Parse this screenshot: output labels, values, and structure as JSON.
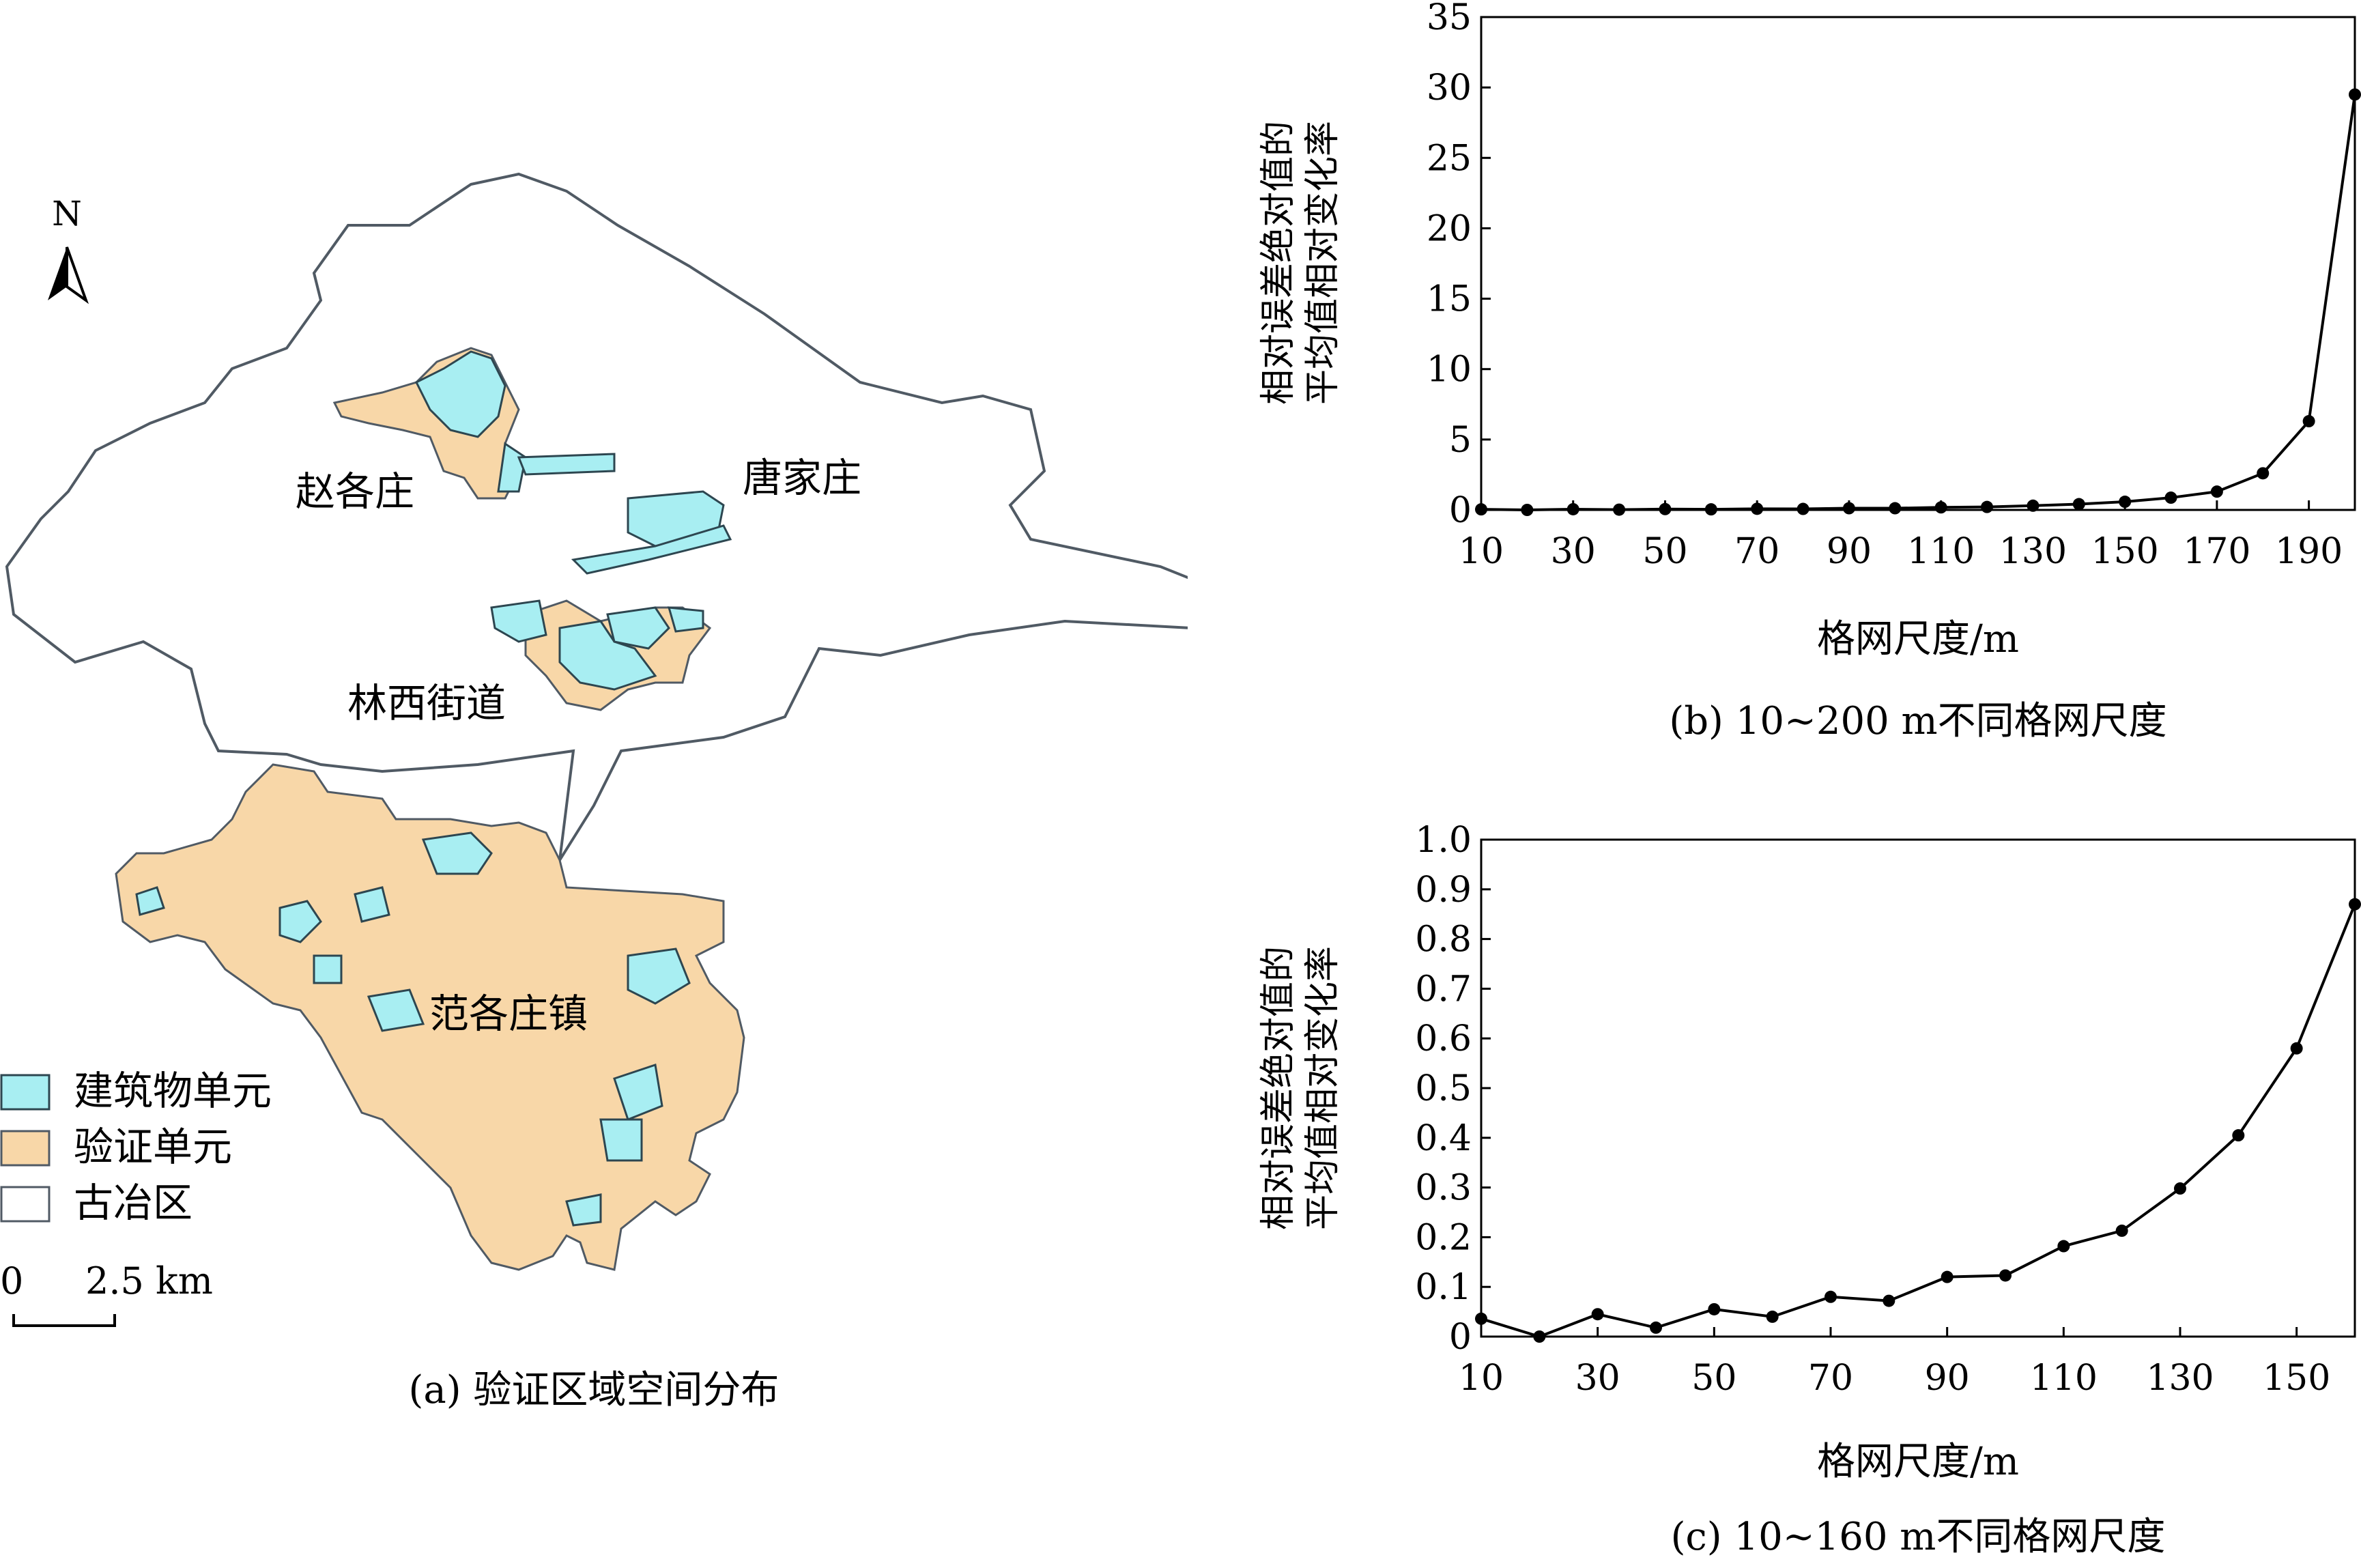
{
  "map": {
    "north_label": "N",
    "regions": [
      "赵各庄",
      "唐家庄",
      "林西街道",
      "范各庄镇"
    ],
    "legend": [
      {
        "label": "建筑物单元",
        "color": "#a8eef2"
      },
      {
        "label": "验证单元",
        "color": "#f8d7a8"
      },
      {
        "label": "古冶区",
        "color": "#ffffff"
      }
    ],
    "scale_zero": "0",
    "scale_label": "2.5 km",
    "caption": "(a) 验证区域空间分布",
    "boundary_color": "#505a64"
  },
  "chart_data": [
    {
      "type": "line",
      "caption": "(b) 10~200 m不同格网尺度",
      "xlabel": "格网尺度/m",
      "ylabel_line1": "相对误差绝对值的",
      "ylabel_line2": "平均值相对变化率",
      "xlim": [
        10,
        200
      ],
      "ylim": [
        0,
        35
      ],
      "xticks": [
        10,
        30,
        50,
        70,
        90,
        110,
        130,
        150,
        170,
        190
      ],
      "yticks": [
        0,
        5,
        10,
        15,
        20,
        25,
        30,
        35
      ],
      "x": [
        10,
        20,
        30,
        40,
        50,
        60,
        70,
        80,
        90,
        100,
        110,
        120,
        130,
        140,
        150,
        160,
        170,
        180,
        190,
        200
      ],
      "y": [
        0.04,
        0.0,
        0.05,
        0.02,
        0.06,
        0.04,
        0.08,
        0.07,
        0.12,
        0.12,
        0.18,
        0.21,
        0.3,
        0.41,
        0.58,
        0.87,
        1.3,
        2.6,
        6.3,
        29.5
      ]
    },
    {
      "type": "line",
      "caption": "(c) 10~160 m不同格网尺度",
      "xlabel": "格网尺度/m",
      "ylabel_line1": "相对误差绝对值的",
      "ylabel_line2": "平均值相对变化率",
      "xlim": [
        10,
        160
      ],
      "ylim": [
        0,
        1.0
      ],
      "xticks": [
        10,
        30,
        50,
        70,
        90,
        110,
        130,
        150
      ],
      "yticks": [
        0,
        0.1,
        0.2,
        0.3,
        0.4,
        0.5,
        0.6,
        0.7,
        0.8,
        0.9,
        1.0
      ],
      "ytick_labels": [
        "0",
        "0.1",
        "0.2",
        "0.3",
        "0.4",
        "0.5",
        "0.6",
        "0.7",
        "0.8",
        "0.9",
        "1.0"
      ],
      "x": [
        10,
        20,
        30,
        40,
        50,
        60,
        70,
        80,
        90,
        100,
        110,
        120,
        130,
        140,
        150,
        160
      ],
      "y": [
        0.036,
        0.0,
        0.045,
        0.018,
        0.055,
        0.04,
        0.08,
        0.072,
        0.12,
        0.123,
        0.182,
        0.213,
        0.298,
        0.405,
        0.58,
        0.87
      ]
    }
  ]
}
